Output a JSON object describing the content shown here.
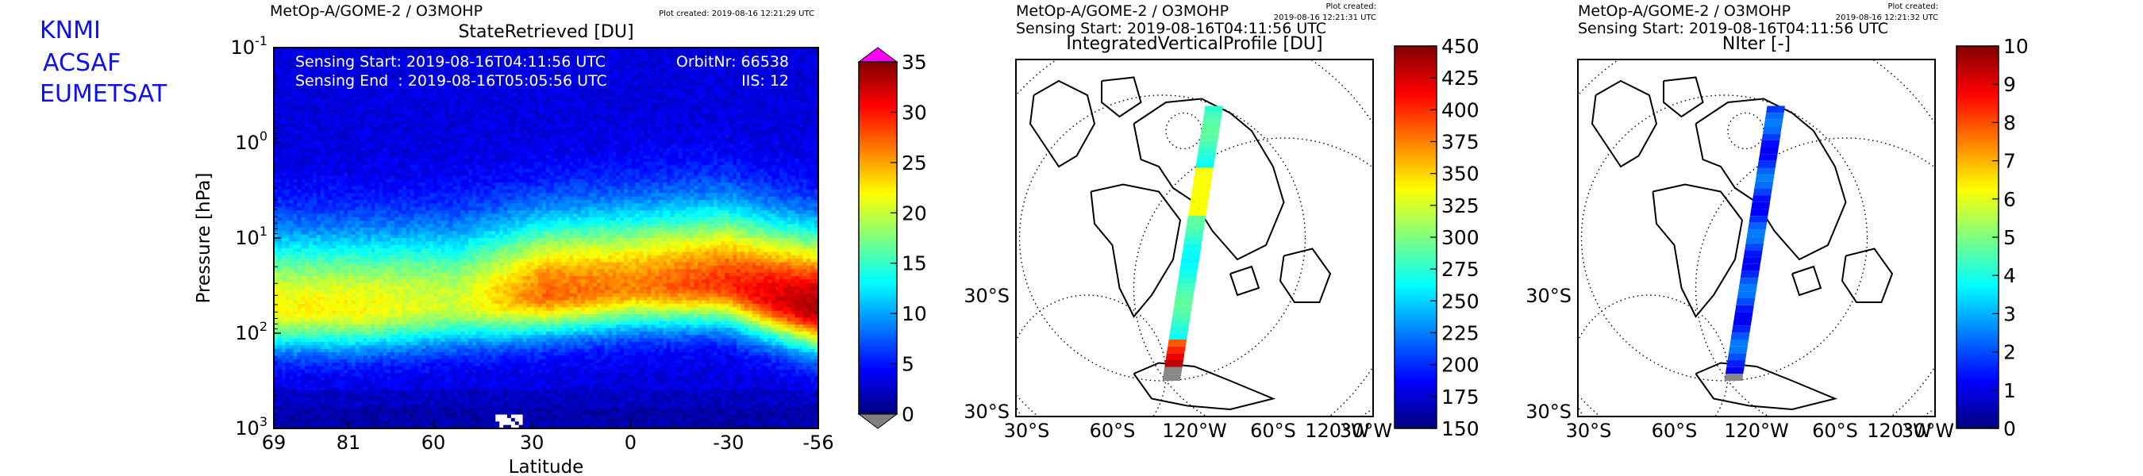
{
  "logo_lines": [
    "KNMI",
    "ACSAF",
    "EUMETSAT"
  ],
  "logo_color": "#1010ee",
  "panels": [
    {
      "header": "MetOp-A/GOME-2 / O3MOHP",
      "plot_created": "Plot created: 2019-08-16 12:21:29 UTC",
      "info_left": [
        "Sensing Start: 2019-08-16T04:11:56 UTC",
        "Sensing End  : 2019-08-16T05:05:56 UTC"
      ],
      "info_right": [
        "OrbitNr: 66538",
        "IIS: 12"
      ]
    },
    {
      "header": "MetOp-A/GOME-2 / O3MOHP",
      "plot_created_lines": [
        "Plot created:",
        "2019-08-16 12:21:31 UTC"
      ],
      "sensing": "Sensing Start: 2019-08-16T04:11:56 UTC"
    },
    {
      "header": "MetOp-A/GOME-2 / O3MOHP",
      "plot_created_lines": [
        "Plot created:",
        "2019-08-16 12:21:32 UTC"
      ],
      "sensing": "Sensing Start: 2019-08-16T04:11:56 UTC"
    }
  ],
  "colors": {
    "jet": [
      "#00007f",
      "#0000ff",
      "#007fff",
      "#00ffff",
      "#7fff7f",
      "#ffff00",
      "#ff7f00",
      "#ff0000",
      "#7f0000"
    ],
    "over": "#ff00ff",
    "under": "#808080",
    "coast": "#000000"
  },
  "chart_data": [
    {
      "type": "heatmap",
      "title": "StateRetrieved [DU]",
      "xlabel": "Latitude",
      "ylabel": "Pressure [hPa]",
      "x_ticks": [
        "69",
        "81",
        "60",
        "30",
        "0",
        "-30",
        "-56"
      ],
      "y_scale": "log",
      "y_ticks": [
        {
          "base": "10",
          "exp": "-1",
          "value": 0.1
        },
        {
          "base": "10",
          "exp": "0",
          "value": 1
        },
        {
          "base": "10",
          "exp": "1",
          "value": 10
        },
        {
          "base": "10",
          "exp": "2",
          "value": 100
        },
        {
          "base": "10",
          "exp": "3",
          "value": 1000
        }
      ],
      "ylim": [
        1000,
        0.1
      ],
      "colorbar": {
        "min": 0,
        "max": 35,
        "ticks": [
          "35",
          "30",
          "25",
          "20",
          "15",
          "10",
          "5",
          "0"
        ],
        "extend": "both"
      },
      "profile_max": {
        "latitude": [
          69,
          81,
          60,
          30,
          0,
          -30,
          -56
        ],
        "max_du": [
          22,
          22,
          20,
          27,
          26,
          29,
          34
        ],
        "peak_pressure_hpa": [
          55,
          55,
          48,
          38,
          32,
          30,
          55
        ]
      },
      "grid": false
    },
    {
      "type": "heatmap",
      "title": "IntegratedVerticalProfile [DU]",
      "colorbar": {
        "min": 150,
        "max": 450,
        "ticks": [
          "450",
          "425",
          "400",
          "375",
          "350",
          "325",
          "300",
          "275",
          "250",
          "225",
          "200",
          "175",
          "150"
        ]
      },
      "map_labels": {
        "left": [
          "30°S",
          "30°S"
        ],
        "bottom": [
          "30°S",
          "60°S",
          "120°W",
          "60°S",
          "120°W",
          "30°W"
        ]
      },
      "grid": true
    },
    {
      "type": "heatmap",
      "title": "NIter [-]",
      "colorbar": {
        "min": 0,
        "max": 10,
        "ticks": [
          "10",
          "9",
          "8",
          "7",
          "6",
          "5",
          "4",
          "3",
          "2",
          "1",
          "0"
        ]
      },
      "map_labels": {
        "left": [
          "30°S",
          "30°S"
        ],
        "bottom": [
          "30°S",
          "60°S",
          "120°W",
          "60°S",
          "120°W",
          "30°W"
        ]
      },
      "grid": true
    }
  ]
}
